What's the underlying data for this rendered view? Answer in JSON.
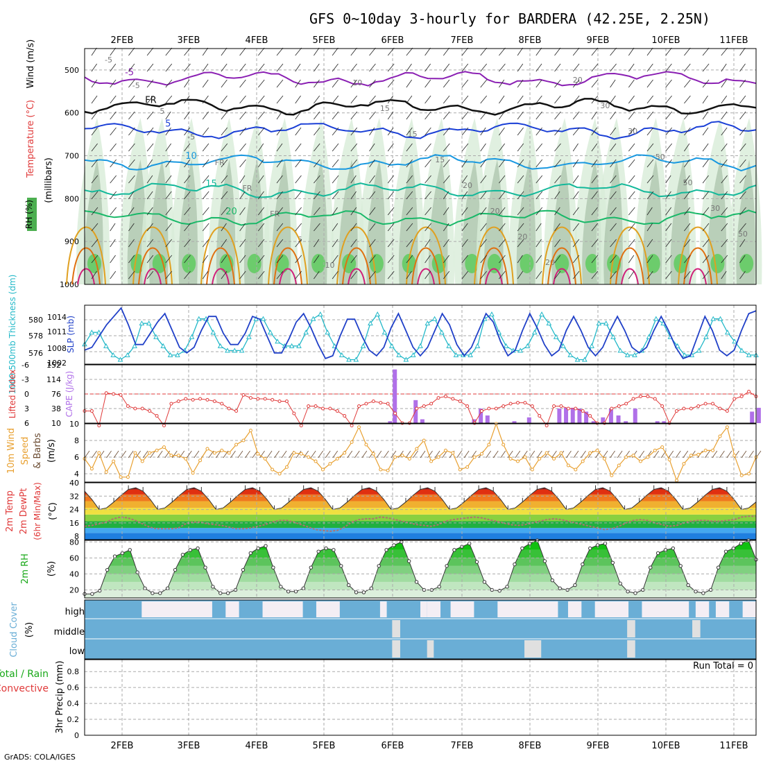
{
  "title": "GFS 0~10day 3-hourly for BARDERA (42.25E, 2.25N)",
  "credit": "GrADS: COLA/IGES",
  "colors": {
    "purple": "#8a1fb3",
    "black": "#111111",
    "blue": "#1a3fd6",
    "skyblue": "#1898e0",
    "teal": "#12b89a",
    "green": "#18b868",
    "orange": "#e0a020",
    "darkorange": "#e07010",
    "magenta": "#d0207a",
    "cyan": "#22b8c8",
    "slpblue": "#2040c8",
    "red": "#e03a3a",
    "cape": "#b070e8",
    "windorange": "#e8a030",
    "cloudblue": "#6aaed6"
  },
  "chart_data": [
    {
      "type": "contour",
      "name": "Upper-air cross section",
      "ylabel_parts": [
        "Wind (m/s)",
        "Temperature (°C)",
        "RH (%)",
        "(millibars)"
      ],
      "y_ticks": [
        500,
        600,
        700,
        800,
        900,
        1000
      ],
      "ylim": [
        1000,
        450
      ],
      "x_dates_top": [
        "2FEB",
        "3FEB",
        "4FEB",
        "5FEB",
        "6FEB",
        "7FEB",
        "8FEB",
        "9FEB",
        "10FEB",
        "11FEB"
      ],
      "contours": [
        {
          "label": "-5",
          "color": "purple",
          "level_mb": 520
        },
        {
          "label": "FR",
          "color": "black",
          "level_mb": 585
        },
        {
          "label": "5",
          "color": "blue",
          "level_mb": 640
        },
        {
          "label": "10",
          "color": "skyblue",
          "level_mb": 715
        },
        {
          "label": "15",
          "color": "teal",
          "level_mb": 780
        },
        {
          "label": "20",
          "color": "green",
          "level_mb": 845
        }
      ],
      "contour_labels": [
        "-5",
        "-5",
        "5",
        "-5",
        "FR",
        "FR",
        "FR",
        "5",
        "10",
        "10",
        "15",
        "15",
        "15",
        "20",
        "20",
        "20",
        "20",
        "20",
        "30",
        "30",
        "50",
        "50",
        "30",
        "50"
      ]
    },
    {
      "type": "line",
      "name": "Thickness and SLP",
      "ylabel_left": "1000-500mb Thickness (dm)",
      "ylabel_right": "SLP (mb)",
      "left_ticks": [
        "580",
        "578",
        "576"
      ],
      "right_ticks": [
        "1014",
        "1011",
        "1008",
        "1002"
      ],
      "thickness_ylim": [
        575,
        581.5
      ],
      "slp_ylim": [
        1005,
        1015.5
      ],
      "series": [
        {
          "name": "Thickness",
          "values": [
            577.2,
            578.5,
            578.5,
            577,
            576,
            575.5,
            576,
            577,
            579.5,
            579.5,
            578,
            577,
            576,
            576,
            576.5,
            578,
            580,
            580,
            578.5,
            577,
            576.5,
            576.5,
            576.5,
            578,
            580,
            580,
            578.5,
            577.5,
            577,
            577,
            577,
            578.5,
            580,
            580.5,
            578.5,
            577,
            576,
            575.5,
            575.5,
            577,
            579.5,
            580.5,
            578.5,
            577,
            576,
            575.5,
            576,
            577,
            579.5,
            580,
            578.5,
            577,
            576,
            576,
            576,
            577,
            580,
            580.5,
            578.5,
            577,
            576.5,
            576.5,
            577,
            578.5,
            580.5,
            579.5,
            578,
            577,
            576,
            575.5,
            575.5,
            577,
            579.5,
            579.5,
            578,
            576.5,
            576,
            576,
            576.5,
            578,
            580,
            579.5,
            578,
            577,
            576,
            576,
            576.5,
            578,
            580,
            580,
            578.5,
            577.5,
            576.5,
            576,
            576
          ]
        },
        {
          "name": "SLP",
          "values": [
            1007.5,
            1008,
            1010,
            1012,
            1013.5,
            1015,
            1012,
            1008.5,
            1008.5,
            1010.5,
            1012.5,
            1014,
            1011,
            1008,
            1007,
            1008,
            1011,
            1013.5,
            1013.5,
            1010.5,
            1008.5,
            1008.5,
            1010.5,
            1013.5,
            1013,
            1010,
            1007,
            1007,
            1009.5,
            1012.5,
            1014,
            1011.5,
            1008.5,
            1006,
            1006.5,
            1010,
            1013,
            1013,
            1010,
            1007.5,
            1006.5,
            1008,
            1011.5,
            1014,
            1011,
            1008,
            1006.5,
            1008,
            1011,
            1014,
            1012,
            1008.5,
            1006.5,
            1008,
            1011,
            1014,
            1012.5,
            1009,
            1006.5,
            1007.5,
            1011,
            1014,
            1011.5,
            1008.5,
            1006.5,
            1007.5,
            1011,
            1013.5,
            1011,
            1008,
            1006.5,
            1008,
            1011,
            1013.5,
            1011,
            1008,
            1007,
            1008,
            1011,
            1013.5,
            1011,
            1008,
            1006,
            1006.5,
            1010,
            1013.5,
            1011,
            1007.5,
            1006.5,
            1007.5,
            1011,
            1014,
            1014.5
          ]
        }
      ]
    },
    {
      "type": "bar+line",
      "name": "Lifted Index and CAPE",
      "ylabel_left": "Lifted Index",
      "ylabel_right": "CAPE (J/kg)",
      "left_ticks": [
        "-3",
        "0",
        "3",
        "6"
      ],
      "right_ticks": [
        "114",
        "76",
        "38",
        "10"
      ],
      "top_ticks": [
        "-6",
        "152"
      ],
      "li_ylim": [
        6,
        -6
      ],
      "cape_ylim": [
        0,
        152
      ],
      "series": [
        {
          "name": "Lifted Index",
          "values": [
            3.5,
            3.5,
            6.5,
            -0.2,
            0,
            0.2,
            2.5,
            3,
            3,
            3.5,
            4.5,
            6.5,
            2,
            1.5,
            1,
            1.2,
            1,
            1.2,
            1.5,
            2,
            3,
            3.5,
            0.2,
            0.8,
            1,
            1,
            1.2,
            1.5,
            1.5,
            4,
            6.5,
            2.5,
            2.5,
            3,
            3,
            3.5,
            4.5,
            6.5,
            2.5,
            2,
            1.5,
            1.8,
            2,
            4,
            6,
            6,
            3,
            2.5,
            2,
            0.8,
            0.5,
            1,
            1.5,
            2.5,
            6,
            3.5,
            3,
            3,
            2.5,
            2,
            1.8,
            1.8,
            2.5,
            4.5,
            6.5,
            2.5,
            2.5,
            3,
            3,
            3.5,
            4.5,
            6,
            6,
            3,
            2.5,
            2,
            1,
            0.5,
            0.5,
            1,
            2.5,
            6,
            3.5,
            3,
            3,
            2.5,
            2,
            2,
            3,
            3.5,
            1,
            0.5,
            -0.5,
            0.5
          ]
        },
        {
          "name": "CAPE",
          "bars": [
            {
              "x": 0.455,
              "v": 5
            },
            {
              "x": 0.462,
              "v": 140
            },
            {
              "x": 0.493,
              "v": 60
            },
            {
              "x": 0.503,
              "v": 10
            },
            {
              "x": 0.58,
              "v": 10
            },
            {
              "x": 0.59,
              "v": 38
            },
            {
              "x": 0.6,
              "v": 20
            },
            {
              "x": 0.64,
              "v": 5
            },
            {
              "x": 0.662,
              "v": 15
            },
            {
              "x": 0.707,
              "v": 38
            },
            {
              "x": 0.717,
              "v": 40
            },
            {
              "x": 0.727,
              "v": 40
            },
            {
              "x": 0.737,
              "v": 38
            },
            {
              "x": 0.747,
              "v": 30
            },
            {
              "x": 0.758,
              "v": 5
            },
            {
              "x": 0.772,
              "v": 15
            },
            {
              "x": 0.784,
              "v": 38
            },
            {
              "x": 0.795,
              "v": 20
            },
            {
              "x": 0.806,
              "v": 5
            },
            {
              "x": 0.82,
              "v": 38
            },
            {
              "x": 0.853,
              "v": 5
            },
            {
              "x": 0.863,
              "v": 5
            },
            {
              "x": 0.994,
              "v": 30
            },
            {
              "x": 1.004,
              "v": 40
            }
          ]
        }
      ]
    },
    {
      "type": "line",
      "name": "10m Wind",
      "ylabel_parts": [
        "10m Wind",
        "Speed",
        "& Barbs",
        "(m/s)"
      ],
      "y_ticks": [
        "10",
        "8",
        "6",
        "4"
      ],
      "ylim": [
        3,
        10
      ],
      "series": [
        {
          "name": "10m Wind Speed",
          "values": [
            5.8,
            4.6,
            6.5,
            4.2,
            5.5,
            3.6,
            3.6,
            6.5,
            5.5,
            6.5,
            6.8,
            7.2,
            6.2,
            6.2,
            5.8,
            4.1,
            5.6,
            7,
            6.5,
            6.8,
            6.5,
            7.5,
            8,
            9.2,
            6.4,
            5.8,
            4.5,
            4,
            4.8,
            6.5,
            6.4,
            6,
            5.5,
            4.5,
            5.2,
            5.8,
            6.5,
            7.8,
            9.6,
            7.5,
            6.4,
            4.5,
            4.4,
            6,
            6.2,
            5.8,
            7,
            8,
            5.5,
            6,
            6.8,
            6.5,
            4.5,
            4.8,
            6,
            6.4,
            7.5,
            10,
            7.5,
            5.8,
            5.5,
            6,
            4.5,
            5.8,
            6.5,
            5.8,
            6.5,
            5,
            4.5,
            5.5,
            6.5,
            6.8,
            5.8,
            3.8,
            5,
            6,
            6.2,
            5.5,
            6,
            6.8,
            7.2,
            5.7,
            3.2,
            5.2,
            6.2,
            6.3,
            6.8,
            6.8,
            8.5,
            9.6,
            6.2,
            3.8,
            4,
            6
          ]
        }
      ]
    },
    {
      "type": "area",
      "name": "2m Temperature and Dew Point",
      "ylabel_parts": [
        "2m Temp",
        "2m DewPt",
        "(6hr Min/Max)",
        "(°C)"
      ],
      "y_ticks": [
        "40",
        "32",
        "24",
        "16",
        "8"
      ],
      "ylim": [
        6,
        40
      ],
      "series": [
        {
          "name": "2m Temp",
          "pattern_hourly_cycle": [
            24,
            25,
            28.5,
            32.5,
            36,
            37,
            35,
            30
          ]
        },
        {
          "name": "2m DewPt",
          "values": [
            14,
            14.5,
            15.5,
            16.5,
            18.5,
            19.5,
            19,
            17.5,
            15.5,
            13.5,
            12.5,
            12.5,
            12.5,
            13,
            15.5,
            16.5,
            16.5,
            15.5,
            15,
            14.5,
            13.5,
            12.5,
            12.5,
            13,
            14,
            15,
            16.5,
            17.5,
            17.5,
            16.5,
            15,
            13.5,
            12,
            11.5,
            11,
            11.5,
            13.5,
            16.5,
            18,
            18.5,
            18.5,
            19.5,
            19,
            18,
            17,
            16,
            15,
            14.5,
            14,
            15,
            17,
            18,
            18.5,
            19,
            19.5,
            19,
            18,
            17,
            16,
            15,
            14.5,
            15,
            16,
            17,
            18,
            18.5,
            18,
            17,
            16,
            15,
            14,
            13,
            12,
            12.5,
            14,
            16,
            17.5,
            18,
            17.5,
            16,
            15,
            14,
            14.5,
            16,
            17,
            17.5,
            17.5,
            17,
            17,
            17.5,
            18,
            19.5,
            20,
            20
          ]
        }
      ]
    },
    {
      "type": "area",
      "name": "2m RH",
      "ylabel_parts": [
        "2m RH",
        "(%)"
      ],
      "y_ticks": [
        "80",
        "60",
        "40",
        "20"
      ],
      "ylim": [
        10,
        82
      ],
      "series": [
        {
          "name": "2m RH",
          "values": [
            15,
            15,
            19,
            45,
            62,
            66,
            70,
            42,
            22,
            16,
            16,
            22,
            45,
            64,
            70,
            72,
            48,
            24,
            16,
            16,
            20,
            45,
            66,
            72,
            75,
            48,
            24,
            18,
            18,
            22,
            48,
            68,
            72,
            70,
            50,
            26,
            17,
            17,
            22,
            50,
            70,
            76,
            80,
            56,
            30,
            20,
            20,
            24,
            50,
            70,
            74,
            78,
            55,
            30,
            20,
            19,
            24,
            52,
            72,
            78,
            82,
            56,
            32,
            22,
            20,
            26,
            52,
            72,
            76,
            78,
            54,
            28,
            18,
            16,
            20,
            48,
            66,
            70,
            72,
            50,
            26,
            18,
            16,
            20,
            48,
            68,
            72,
            78,
            82,
            58
          ]
        }
      ]
    },
    {
      "type": "heatmap",
      "name": "Cloud Cover",
      "ylabel_parts": [
        "Cloud Cover",
        "(%)"
      ],
      "y_labels": [
        "high",
        "middle",
        "low"
      ],
      "high_gaps": [
        [
          0.085,
          0.19
        ],
        [
          0.21,
          0.23
        ],
        [
          0.265,
          0.325
        ],
        [
          0.345,
          0.38
        ],
        [
          0.44,
          0.45
        ],
        [
          0.5,
          0.51
        ],
        [
          0.51,
          0.53
        ],
        [
          0.545,
          0.58
        ],
        [
          0.615,
          0.705
        ],
        [
          0.72,
          0.74
        ],
        [
          0.76,
          0.81
        ],
        [
          0.83,
          0.9
        ],
        [
          0.91,
          0.93
        ],
        [
          0.94,
          0.96
        ],
        [
          0.98,
          1.0
        ]
      ],
      "middle_gaps": [
        [
          0.458,
          0.47
        ],
        [
          0.808,
          0.82
        ],
        [
          0.905,
          0.917
        ]
      ],
      "low_gaps": [
        [
          0.458,
          0.47
        ],
        [
          0.51,
          0.52
        ],
        [
          0.655,
          0.68
        ],
        [
          0.808,
          0.82
        ]
      ]
    },
    {
      "type": "bar",
      "name": "3hr Precip",
      "ylabel_parts": [
        "Total / Rain",
        "Convective",
        "3hr Precip (mm)"
      ],
      "y_ticks": [
        "0.8",
        "0.6",
        "0.4",
        "0.2",
        "0"
      ],
      "ylim": [
        0,
        0.95
      ],
      "values": [],
      "annotation": "Run Total = 0",
      "x_dates_bottom": [
        "2FEB",
        "3FEB",
        "4FEB",
        "5FEB",
        "6FEB",
        "7FEB",
        "8FEB",
        "9FEB",
        "10FEB",
        "11FEB"
      ]
    }
  ]
}
